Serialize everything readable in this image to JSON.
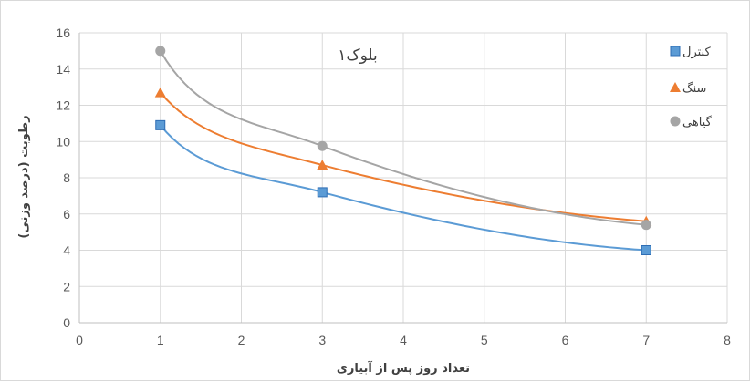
{
  "chart_data": {
    "type": "line",
    "title": "",
    "annotation": "بلوک۱",
    "xlabel": "تعداد روز پس از آبیاری",
    "ylabel": "رطوبت (درصد وزنی)",
    "xlim": [
      0,
      8
    ],
    "ylim": [
      0,
      16
    ],
    "x_ticks": [
      "0",
      "1",
      "2",
      "3",
      "4",
      "5",
      "6",
      "7",
      "8"
    ],
    "y_ticks": [
      "0",
      "2",
      "4",
      "6",
      "8",
      "10",
      "12",
      "14",
      "16"
    ],
    "grid": true,
    "legend_position": "right",
    "series": [
      {
        "name": "کنترل",
        "color": "#5B9BD5",
        "marker": "square",
        "x": [
          1,
          3,
          7
        ],
        "y": [
          10.9,
          7.2,
          4.0
        ]
      },
      {
        "name": "سنگ",
        "color": "#ED7D31",
        "marker": "triangle",
        "x": [
          1,
          3,
          7
        ],
        "y": [
          12.7,
          8.7,
          5.6
        ]
      },
      {
        "name": "گیاهی",
        "color": "#A5A5A5",
        "marker": "circle",
        "x": [
          1,
          3,
          7
        ],
        "y": [
          15.0,
          9.75,
          5.4
        ]
      }
    ]
  }
}
